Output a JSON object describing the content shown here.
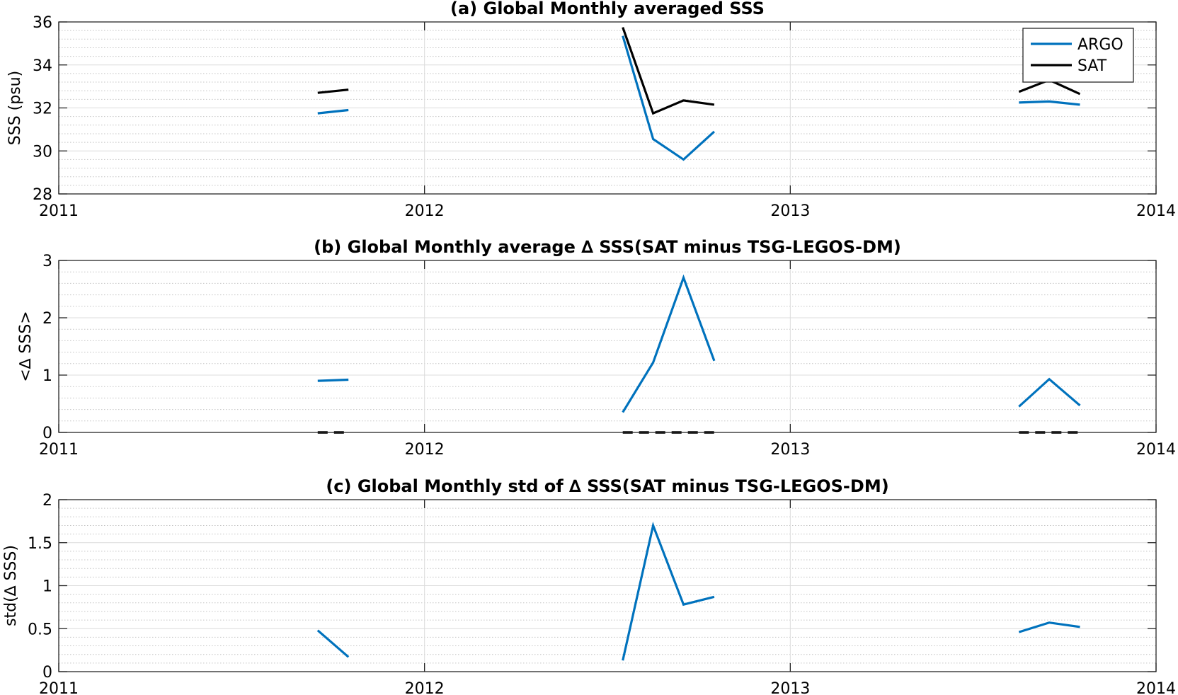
{
  "chart_data": [
    {
      "type": "line",
      "title": "(a) Global Monthly averaged SSS",
      "xlabel": "",
      "ylabel": "SSS (psu)",
      "xlim": [
        2011,
        2014
      ],
      "ylim": [
        28,
        36
      ],
      "xticks": [
        2011,
        2012,
        2013,
        2014
      ],
      "xtick_labels": [
        "2011",
        "2012",
        "2013",
        "2014"
      ],
      "yticks": [
        28,
        30,
        32,
        34,
        36
      ],
      "ytick_labels": [
        "28",
        "30",
        "32",
        "34",
        "36"
      ],
      "grid": true,
      "legend": "top-right",
      "series": [
        {
          "name": "ARGO",
          "color": "#0072BD",
          "segments": [
            [
              [
                2011.708,
                31.75
              ],
              [
                2011.792,
                31.9
              ]
            ],
            [
              [
                2012.542,
                35.35
              ],
              [
                2012.625,
                30.55
              ],
              [
                2012.708,
                29.6
              ],
              [
                2012.792,
                30.9
              ]
            ],
            [
              [
                2013.625,
                32.25
              ],
              [
                2013.708,
                32.3
              ],
              [
                2013.792,
                32.15
              ]
            ]
          ]
        },
        {
          "name": "SAT",
          "color": "#000000",
          "segments": [
            [
              [
                2011.708,
                32.7
              ],
              [
                2011.792,
                32.85
              ]
            ],
            [
              [
                2012.542,
                35.75
              ],
              [
                2012.625,
                31.75
              ],
              [
                2012.708,
                32.35
              ],
              [
                2012.792,
                32.15
              ]
            ],
            [
              [
                2013.625,
                32.75
              ],
              [
                2013.708,
                33.3
              ],
              [
                2013.792,
                32.65
              ]
            ]
          ]
        }
      ]
    },
    {
      "type": "line",
      "title": "(b) Global Monthly average ∆ SSS(SAT minus TSG-LEGOS-DM)",
      "xlabel": "",
      "ylabel": "<∆ SSS>",
      "xlim": [
        2011,
        2014
      ],
      "ylim": [
        0,
        3
      ],
      "xticks": [
        2011,
        2012,
        2013,
        2014
      ],
      "xtick_labels": [
        "2011",
        "2012",
        "2013",
        "2014"
      ],
      "yticks": [
        0,
        1,
        2,
        3
      ],
      "ytick_labels": [
        "0",
        "1",
        "2",
        "3"
      ],
      "grid": true,
      "series": [
        {
          "color": "#0072BD",
          "segments": [
            [
              [
                2011.708,
                0.9
              ],
              [
                2011.792,
                0.92
              ]
            ],
            [
              [
                2012.542,
                0.35
              ],
              [
                2012.625,
                1.22
              ],
              [
                2012.708,
                2.7
              ],
              [
                2012.792,
                1.25
              ]
            ],
            [
              [
                2013.625,
                0.45
              ],
              [
                2013.708,
                0.93
              ],
              [
                2013.792,
                0.47
              ]
            ]
          ]
        },
        {
          "color": "#000000",
          "dashed": true,
          "segments": [
            [
              [
                2011.708,
                0.0
              ],
              [
                2011.792,
                0.0
              ]
            ],
            [
              [
                2012.542,
                0.0
              ],
              [
                2012.625,
                0.0
              ],
              [
                2012.708,
                0.0
              ],
              [
                2012.792,
                0.0
              ]
            ],
            [
              [
                2013.625,
                0.0
              ],
              [
                2013.708,
                0.0
              ],
              [
                2013.792,
                0.0
              ]
            ]
          ]
        }
      ]
    },
    {
      "type": "line",
      "title": "(c) Global Monthly std of ∆ SSS(SAT minus TSG-LEGOS-DM)",
      "xlabel": "",
      "ylabel": "std(∆ SSS)",
      "xlim": [
        2011,
        2014
      ],
      "ylim": [
        0,
        2
      ],
      "xticks": [
        2011,
        2012,
        2013,
        2014
      ],
      "xtick_labels": [
        "2011",
        "2012",
        "2013",
        "2014"
      ],
      "yticks": [
        0,
        0.5,
        1,
        1.5,
        2
      ],
      "ytick_labels": [
        "0",
        "0.5",
        "1",
        "1.5",
        "2"
      ],
      "grid": true,
      "series": [
        {
          "color": "#0072BD",
          "segments": [
            [
              [
                2011.708,
                0.48
              ],
              [
                2011.792,
                0.17
              ]
            ],
            [
              [
                2012.542,
                0.13
              ],
              [
                2012.625,
                1.7
              ],
              [
                2012.708,
                0.78
              ],
              [
                2012.792,
                0.87
              ]
            ],
            [
              [
                2013.625,
                0.46
              ],
              [
                2013.708,
                0.57
              ],
              [
                2013.792,
                0.52
              ]
            ]
          ]
        }
      ]
    }
  ]
}
